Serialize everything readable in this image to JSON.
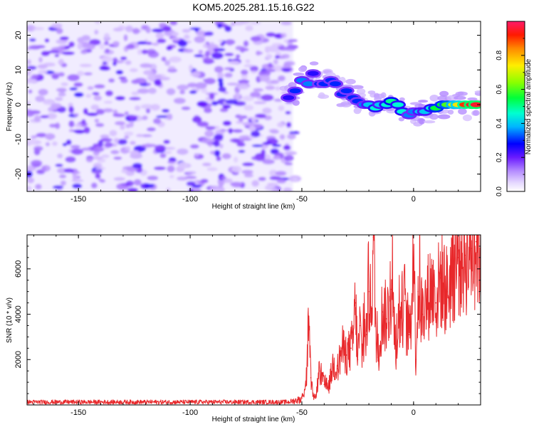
{
  "chart_data": [
    {
      "type": "heatmap",
      "title": "KOM5.2025.281.15.16.G22",
      "xlabel": "Height of straight line (km)",
      "ylabel": "Frequency (Hz)",
      "xlim": [
        -173,
        30
      ],
      "ylim": [
        -25,
        24
      ],
      "x_ticks": [
        -150,
        -100,
        -50,
        0
      ],
      "y_ticks": [
        -20,
        -10,
        0,
        10,
        20
      ],
      "colorbar": {
        "label": "Normalized spectral amplitude",
        "range": [
          0,
          1
        ],
        "ticks": [
          0.0,
          0.2,
          0.4,
          0.6,
          0.8
        ],
        "tick_labels": [
          "0.0",
          "0.2",
          "0.4",
          "0.6",
          "0.8"
        ]
      },
      "noise_region_x": [
        -173,
        -54
      ],
      "signal_ridge": {
        "x": [
          -56,
          -53,
          -50,
          -47,
          -45,
          -42,
          -40,
          -37,
          -35,
          -32,
          -30,
          -27,
          -25,
          -22,
          -20,
          -17,
          -15,
          -12,
          -10,
          -7,
          -5,
          -2,
          0,
          3,
          5,
          8,
          10,
          13,
          15,
          18,
          20,
          23,
          26,
          28
        ],
        "frequency": [
          2,
          4,
          7,
          6,
          9,
          6,
          6,
          7,
          6,
          3,
          4,
          2,
          1,
          0,
          0,
          -1,
          0,
          0,
          1,
          0,
          -2,
          -3,
          -2,
          -2,
          -2,
          -1,
          -1,
          0,
          0,
          0,
          0,
          0,
          0,
          0
        ],
        "amplitude": [
          0.25,
          0.3,
          0.35,
          0.35,
          0.25,
          0.3,
          0.3,
          0.3,
          0.3,
          0.3,
          0.3,
          0.3,
          0.3,
          0.35,
          0.4,
          0.45,
          0.4,
          0.45,
          0.5,
          0.45,
          0.45,
          0.35,
          0.35,
          0.4,
          0.4,
          0.45,
          0.55,
          0.55,
          0.6,
          0.7,
          0.75,
          0.9,
          0.95,
          0.95
        ]
      }
    },
    {
      "type": "line",
      "xlabel": "Height of straight line (km)",
      "ylabel": "SNR (10 * v/v)",
      "xlim": [
        -173,
        30
      ],
      "ylim": [
        0,
        7500
      ],
      "x_ticks": [
        -150,
        -100,
        -50,
        0
      ],
      "y_ticks": [
        2000,
        4000,
        6000
      ],
      "series": [
        {
          "name": "SNR",
          "color": "#e8282b",
          "x": [
            -173,
            -150,
            -100,
            -56,
            -50,
            -48,
            -47,
            -46,
            -45,
            -44,
            -42,
            -40,
            -38,
            -36,
            -34,
            -32,
            -30,
            -28,
            -27,
            -26,
            -25,
            -24,
            -23,
            -22,
            -21,
            -20,
            -19,
            -18,
            -17,
            -16,
            -14,
            -12,
            -10,
            -9,
            -8,
            -6,
            -4,
            -3,
            -2,
            -1,
            0,
            1,
            2,
            4,
            6,
            8,
            10,
            12,
            15,
            18,
            20,
            23,
            26,
            28,
            30
          ],
          "y": [
            150,
            150,
            150,
            150,
            300,
            900,
            3600,
            1200,
            400,
            300,
            1500,
            900,
            800,
            1800,
            1600,
            2500,
            2200,
            2500,
            3000,
            4500,
            2000,
            3500,
            2200,
            3200,
            3100,
            5000,
            4200,
            7400,
            3600,
            2100,
            4100,
            3800,
            5100,
            4100,
            2600,
            3900,
            4600,
            3400,
            3100,
            4000,
            7500,
            2000,
            5000,
            4000,
            4600,
            5300,
            4500,
            5600,
            5000,
            6100,
            6500,
            6600,
            6900,
            7200,
            7000
          ]
        }
      ]
    }
  ]
}
